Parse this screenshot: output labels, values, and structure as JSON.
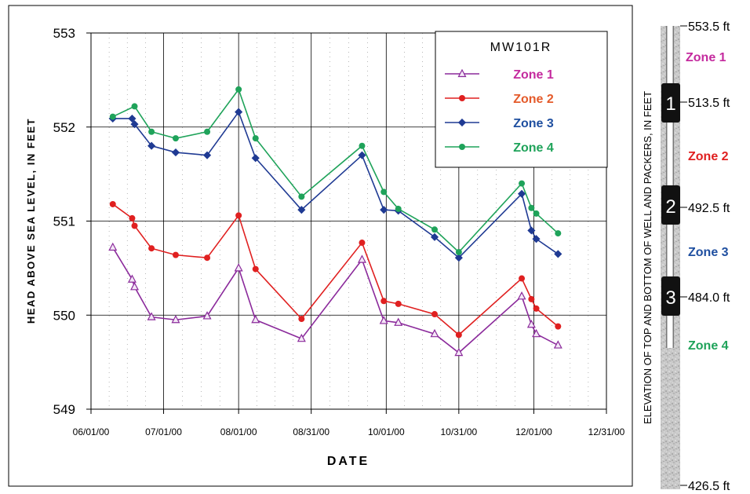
{
  "chart_data": {
    "type": "line",
    "xlabel": "DATE",
    "ylabel": "HEAD ABOVE SEA LEVEL, IN FEET",
    "ylim": [
      549,
      553
    ],
    "yticks": [
      "549",
      "550",
      "551",
      "552",
      "553"
    ],
    "xlim": [
      "2000-06-01",
      "2000-12-31"
    ],
    "xticks": [
      "06/01/00",
      "07/01/00",
      "08/01/00",
      "08/31/00",
      "10/01/00",
      "10/31/00",
      "12/01/00",
      "12/31/00"
    ],
    "grid": true,
    "legend": {
      "title": "MW101R",
      "position": "top-right"
    },
    "series": [
      {
        "name": "Zone 1",
        "color": "#8B2A9B",
        "marker": "triangle-open",
        "points": [
          [
            "2000-06-10",
            550.72
          ],
          [
            "2000-06-18",
            550.38
          ],
          [
            "2000-06-19",
            550.3
          ],
          [
            "2000-06-26",
            549.98
          ],
          [
            "2000-07-06",
            549.95
          ],
          [
            "2000-07-19",
            549.99
          ],
          [
            "2000-08-01",
            550.5
          ],
          [
            "2000-08-08",
            549.95
          ],
          [
            "2000-08-27",
            549.75
          ],
          [
            "2000-09-21",
            550.59
          ],
          [
            "2000-09-30",
            549.94
          ],
          [
            "2000-10-06",
            549.92
          ],
          [
            "2000-10-21",
            549.8
          ],
          [
            "2000-10-31",
            549.6
          ],
          [
            "2000-11-26",
            550.2
          ],
          [
            "2000-11-30",
            549.9
          ],
          [
            "2000-12-02",
            549.8
          ],
          [
            "2000-12-11",
            549.68
          ]
        ]
      },
      {
        "name": "Zone 2",
        "color": "#E02020",
        "marker": "circle",
        "points": [
          [
            "2000-06-10",
            551.18
          ],
          [
            "2000-06-18",
            551.03
          ],
          [
            "2000-06-19",
            550.95
          ],
          [
            "2000-06-26",
            550.71
          ],
          [
            "2000-07-06",
            550.64
          ],
          [
            "2000-07-19",
            550.61
          ],
          [
            "2000-08-01",
            551.06
          ],
          [
            "2000-08-08",
            550.49
          ],
          [
            "2000-08-27",
            549.96
          ],
          [
            "2000-09-21",
            550.77
          ],
          [
            "2000-09-30",
            550.15
          ],
          [
            "2000-10-06",
            550.12
          ],
          [
            "2000-10-21",
            550.01
          ],
          [
            "2000-10-31",
            549.79
          ],
          [
            "2000-11-26",
            550.39
          ],
          [
            "2000-11-30",
            550.17
          ],
          [
            "2000-12-02",
            550.07
          ],
          [
            "2000-12-11",
            549.88
          ]
        ]
      },
      {
        "name": "Zone 3",
        "color": "#1F3A93",
        "marker": "diamond",
        "points": [
          [
            "2000-06-10",
            552.09
          ],
          [
            "2000-06-18",
            552.09
          ],
          [
            "2000-06-19",
            552.03
          ],
          [
            "2000-06-26",
            551.8
          ],
          [
            "2000-07-06",
            551.73
          ],
          [
            "2000-07-19",
            551.7
          ],
          [
            "2000-08-01",
            552.16
          ],
          [
            "2000-08-08",
            551.67
          ],
          [
            "2000-08-27",
            551.12
          ],
          [
            "2000-09-21",
            551.7
          ],
          [
            "2000-09-30",
            551.12
          ],
          [
            "2000-10-06",
            551.11
          ],
          [
            "2000-10-21",
            550.83
          ],
          [
            "2000-10-31",
            550.61
          ],
          [
            "2000-11-26",
            551.29
          ],
          [
            "2000-11-30",
            550.9
          ],
          [
            "2000-12-02",
            550.81
          ],
          [
            "2000-12-11",
            550.65
          ]
        ]
      },
      {
        "name": "Zone 4",
        "color": "#1FA35A",
        "marker": "circle",
        "points": [
          [
            "2000-06-10",
            552.11
          ],
          [
            "2000-06-19",
            552.22
          ],
          [
            "2000-06-26",
            551.95
          ],
          [
            "2000-07-06",
            551.88
          ],
          [
            "2000-07-19",
            551.95
          ],
          [
            "2000-08-01",
            552.4
          ],
          [
            "2000-08-08",
            551.88
          ],
          [
            "2000-08-27",
            551.26
          ],
          [
            "2000-09-21",
            551.8
          ],
          [
            "2000-09-30",
            551.31
          ],
          [
            "2000-10-06",
            551.13
          ],
          [
            "2000-10-21",
            550.91
          ],
          [
            "2000-10-31",
            550.67
          ],
          [
            "2000-11-26",
            551.4
          ],
          [
            "2000-11-30",
            551.14
          ],
          [
            "2000-12-02",
            551.08
          ],
          [
            "2000-12-11",
            550.87
          ]
        ]
      }
    ]
  },
  "well_diagram": {
    "title": "ELEVATION OF TOP AND BOTTOM OF WELL AND PACKERS,  IN FEET",
    "elevations": [
      "553.5 ft",
      "513.5 ft",
      "492.5 ft",
      "484.0 ft",
      "426.5 ft"
    ],
    "packers": [
      "1",
      "2",
      "3"
    ],
    "zones": [
      {
        "label": "Zone 1",
        "color": "#C42A9E"
      },
      {
        "label": "Zone 2",
        "color": "#E02020"
      },
      {
        "label": "Zone 3",
        "color": "#1F4FA0"
      },
      {
        "label": "Zone 4",
        "color": "#1FA35A"
      }
    ]
  },
  "colors": {
    "legend_zone1": "#C42A9E",
    "legend_zone2": "#E45A2A",
    "legend_zone3": "#1F4FA0",
    "legend_zone4": "#1FA35A"
  }
}
